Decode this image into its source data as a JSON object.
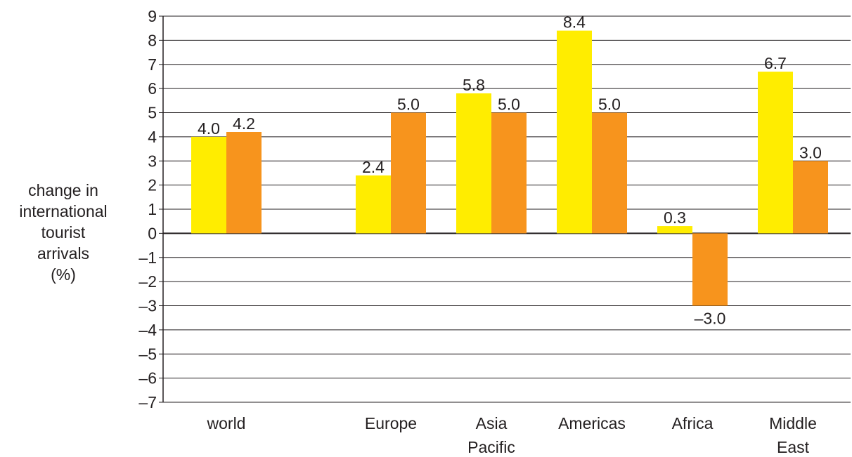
{
  "chart_data": {
    "type": "bar",
    "title": "",
    "xlabel": "",
    "ylabel_lines": [
      "change in",
      "international",
      "tourist",
      "arrivals",
      "(%)"
    ],
    "ylim": [
      -7,
      9
    ],
    "yticks": [
      9,
      8,
      7,
      6,
      5,
      4,
      3,
      2,
      1,
      0,
      -1,
      -2,
      -3,
      -4,
      -5,
      -6,
      -7
    ],
    "ytick_labels": [
      "9",
      "8",
      "7",
      "6",
      "5",
      "4",
      "3",
      "2",
      "1",
      "0",
      "–1",
      "–2",
      "–3",
      "–4",
      "–5",
      "–6",
      "–7"
    ],
    "grid": true,
    "categories": [
      {
        "lines": [
          "world"
        ]
      },
      {
        "lines": [
          "Europe"
        ]
      },
      {
        "lines": [
          "Asia",
          "Pacific"
        ]
      },
      {
        "lines": [
          "Americas"
        ]
      },
      {
        "lines": [
          "Africa"
        ]
      },
      {
        "lines": [
          "Middle",
          "East"
        ]
      }
    ],
    "series": [
      {
        "color": "#ffed00",
        "values": [
          4.0,
          2.4,
          5.8,
          8.4,
          0.3,
          6.7
        ],
        "labels": [
          "4.0",
          "2.4",
          "5.8",
          "8.4",
          "0.3",
          "6.7"
        ]
      },
      {
        "color": "#f7941d",
        "values": [
          4.2,
          5.0,
          5.0,
          5.0,
          -3.0,
          3.0
        ],
        "labels": [
          "4.2",
          "5.0",
          "5.0",
          "5.0",
          "–3.0",
          "3.0"
        ]
      }
    ]
  }
}
